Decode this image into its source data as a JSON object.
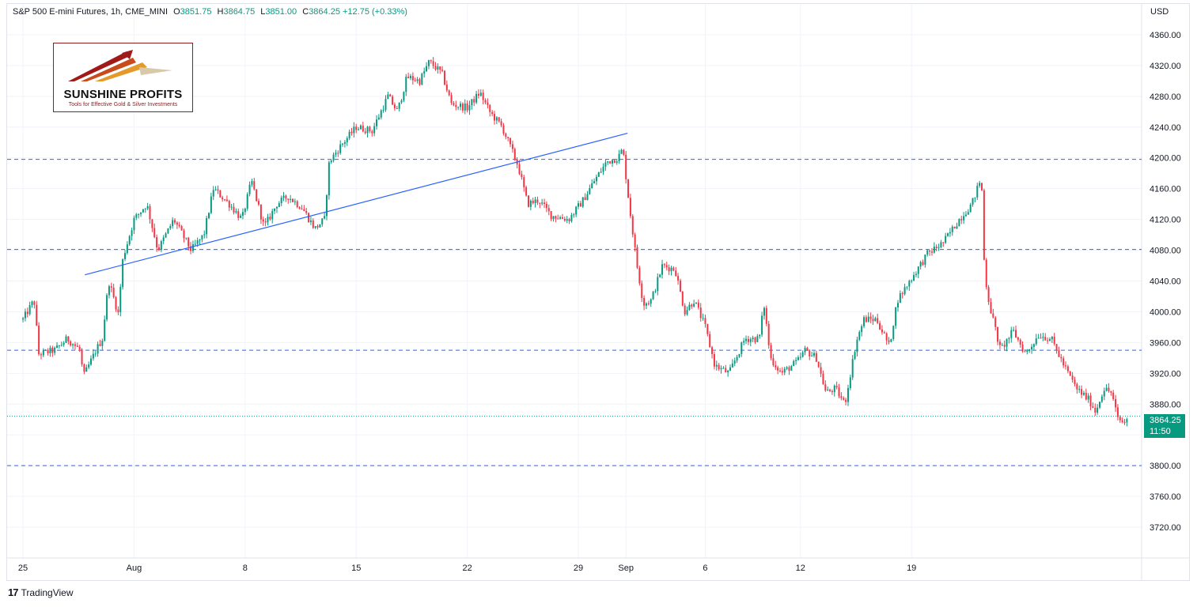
{
  "header": {
    "symbol": "S&P 500 E-mini Futures, 1h, CME_MINI",
    "o_label": "O",
    "o_value": "3851.75",
    "h_label": "H",
    "h_value": "3864.75",
    "l_label": "L",
    "l_value": "3851.00",
    "c_label": "C",
    "c_value": "3864.25",
    "change": "+12.75 (+0.33%)"
  },
  "currency": "USD",
  "logo": {
    "name": "SUNSHINE PROFITS",
    "tagline": "Tools for Effective Gold & Silver Investments"
  },
  "last_price": {
    "price": "3864.25",
    "countdown": "11:50"
  },
  "branding": {
    "mark": "17",
    "name": "TradingView"
  },
  "colors": {
    "up": "#089981",
    "down": "#f23645",
    "hline": "#2962ff",
    "trend": "#2962ff",
    "last": "#089981"
  },
  "chart_data": {
    "type": "candlestick",
    "timeframe": "1h",
    "ylim": [
      3680,
      4400
    ],
    "y_ticks": [
      4360,
      4320,
      4280,
      4240,
      4200,
      4160,
      4120,
      4080,
      4040,
      4000,
      3960,
      3920,
      3880,
      3840,
      3800,
      3760,
      3720
    ],
    "y_tick_labels": [
      "4360.00",
      "4320.00",
      "4280.00",
      "4240.00",
      "4200.00",
      "4160.00",
      "4120.00",
      "4080.00",
      "4040.00",
      "4000.00",
      "3960.00",
      "3920.00",
      "3880.00",
      "3840.00",
      "3800.00",
      "3760.00",
      "3720.00"
    ],
    "x_tick_labels": [
      "25",
      "Aug",
      "8",
      "15",
      "22",
      "29",
      "Sep",
      "6",
      "12",
      "19"
    ],
    "x_tick_days": [
      0,
      7,
      14,
      21,
      28,
      35,
      38,
      43,
      49,
      56
    ],
    "grid": true,
    "last_price": 3864.25,
    "horizontal_levels": [
      4198,
      4081,
      3950,
      3800
    ],
    "trendline": [
      [
        3.9,
        4048
      ],
      [
        38.1,
        4232
      ]
    ],
    "price_path": [
      [
        0.0,
        3990
      ],
      [
        0.7,
        4015
      ],
      [
        1.0,
        3945
      ],
      [
        2.0,
        3950
      ],
      [
        2.8,
        3965
      ],
      [
        3.6,
        3950
      ],
      [
        3.8,
        3915
      ],
      [
        4.6,
        3950
      ],
      [
        5.0,
        3965
      ],
      [
        5.4,
        4040
      ],
      [
        6.0,
        3998
      ],
      [
        6.3,
        4070
      ],
      [
        7.0,
        4120
      ],
      [
        7.8,
        4140
      ],
      [
        8.5,
        4080
      ],
      [
        9.5,
        4120
      ],
      [
        10.6,
        4080
      ],
      [
        11.4,
        4100
      ],
      [
        12.0,
        4160
      ],
      [
        13.0,
        4140
      ],
      [
        13.8,
        4120
      ],
      [
        14.4,
        4170
      ],
      [
        15.2,
        4110
      ],
      [
        16.0,
        4140
      ],
      [
        16.7,
        4150
      ],
      [
        17.6,
        4135
      ],
      [
        18.4,
        4108
      ],
      [
        19.0,
        4120
      ],
      [
        19.3,
        4195
      ],
      [
        20.0,
        4215
      ],
      [
        21.0,
        4240
      ],
      [
        22.0,
        4235
      ],
      [
        23.0,
        4280
      ],
      [
        23.6,
        4260
      ],
      [
        24.2,
        4305
      ],
      [
        25.0,
        4300
      ],
      [
        25.6,
        4325
      ],
      [
        26.4,
        4310
      ],
      [
        27.0,
        4270
      ],
      [
        28.0,
        4265
      ],
      [
        28.8,
        4285
      ],
      [
        29.4,
        4260
      ],
      [
        30.2,
        4240
      ],
      [
        30.7,
        4215
      ],
      [
        31.2,
        4190
      ],
      [
        31.8,
        4140
      ],
      [
        32.5,
        4145
      ],
      [
        33.3,
        4125
      ],
      [
        34.4,
        4120
      ],
      [
        35.3,
        4145
      ],
      [
        36.0,
        4170
      ],
      [
        36.8,
        4195
      ],
      [
        37.5,
        4200
      ],
      [
        37.8,
        4212
      ],
      [
        38.2,
        4140
      ],
      [
        38.7,
        4060
      ],
      [
        39.1,
        4010
      ],
      [
        39.6,
        4015
      ],
      [
        40.3,
        4060
      ],
      [
        41.1,
        4055
      ],
      [
        41.7,
        4000
      ],
      [
        42.3,
        4015
      ],
      [
        43.0,
        3980
      ],
      [
        43.6,
        3930
      ],
      [
        44.5,
        3920
      ],
      [
        45.5,
        3965
      ],
      [
        46.4,
        3965
      ],
      [
        46.7,
        4010
      ],
      [
        47.1,
        3940
      ],
      [
        47.8,
        3920
      ],
      [
        48.8,
        3935
      ],
      [
        49.3,
        3950
      ],
      [
        50.0,
        3940
      ],
      [
        50.6,
        3895
      ],
      [
        51.2,
        3900
      ],
      [
        51.8,
        3880
      ],
      [
        52.5,
        3960
      ],
      [
        53.0,
        3990
      ],
      [
        53.8,
        3990
      ],
      [
        54.6,
        3955
      ],
      [
        55.1,
        4015
      ],
      [
        56.2,
        4050
      ],
      [
        57.0,
        4075
      ],
      [
        58.0,
        4090
      ],
      [
        59.0,
        4120
      ],
      [
        59.8,
        4140
      ],
      [
        60.4,
        4175
      ],
      [
        60.6,
        4050
      ],
      [
        60.9,
        4010
      ],
      [
        61.6,
        3950
      ],
      [
        62.4,
        3975
      ],
      [
        63.2,
        3945
      ],
      [
        64.0,
        3970
      ],
      [
        64.8,
        3965
      ],
      [
        65.6,
        3930
      ],
      [
        66.4,
        3900
      ],
      [
        67.2,
        3885
      ],
      [
        67.6,
        3870
      ],
      [
        68.1,
        3900
      ],
      [
        68.6,
        3895
      ],
      [
        69.0,
        3860
      ],
      [
        69.5,
        3855
      ],
      [
        69.6,
        3864.25
      ]
    ]
  }
}
